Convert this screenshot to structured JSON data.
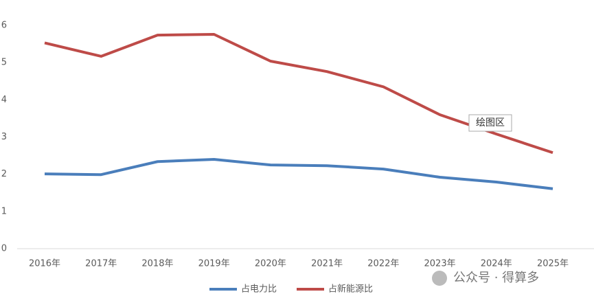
{
  "chart_data": {
    "type": "line",
    "categories": [
      "2016年",
      "2017年",
      "2018年",
      "2019年",
      "2020年",
      "2021年",
      "2022年",
      "2023年",
      "2024年",
      "2025年"
    ],
    "series": [
      {
        "name": "占电力比",
        "color": "#4a7ebb",
        "values": [
          2.01,
          1.99,
          2.34,
          2.4,
          2.25,
          2.23,
          2.14,
          1.92,
          1.79,
          1.61
        ]
      },
      {
        "name": "占新能源比",
        "color": "#be4b48",
        "values": [
          5.53,
          5.17,
          5.74,
          5.76,
          5.04,
          4.76,
          4.35,
          3.6,
          3.08,
          2.58
        ]
      }
    ],
    "ylim": [
      0,
      6
    ],
    "yticks": [
      0,
      1,
      2,
      3,
      4,
      5,
      6
    ],
    "grid": false,
    "tooltip": "绘图区",
    "watermark": "公众号 · 得算多"
  }
}
